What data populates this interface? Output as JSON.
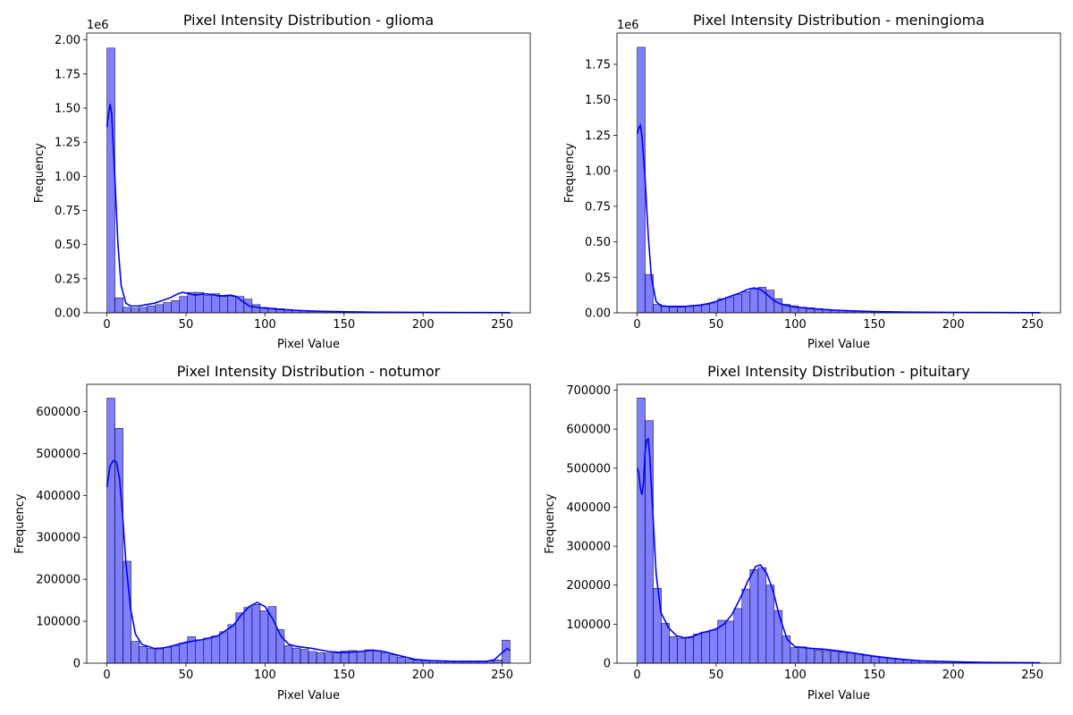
{
  "chart_data": [
    {
      "type": "bar",
      "title": "Pixel Intensity Distribution - glioma",
      "xlabel": "Pixel Value",
      "ylabel": "Frequency",
      "offset_label": "1e6",
      "bin_width": 5.1,
      "xlim": [
        0,
        255
      ],
      "ylim": [
        0,
        2.05
      ],
      "xticks": [
        {
          "value": 0,
          "label": "0"
        },
        {
          "value": 50,
          "label": "50"
        },
        {
          "value": 100,
          "label": "100"
        },
        {
          "value": 150,
          "label": "150"
        },
        {
          "value": 200,
          "label": "200"
        },
        {
          "value": 250,
          "label": "250"
        }
      ],
      "yticks": [
        {
          "value": 0,
          "label": "0.00"
        },
        {
          "value": 0.25,
          "label": "0.25"
        },
        {
          "value": 0.5,
          "label": "0.50"
        },
        {
          "value": 0.75,
          "label": "0.75"
        },
        {
          "value": 1.0,
          "label": "1.00"
        },
        {
          "value": 1.25,
          "label": "1.25"
        },
        {
          "value": 1.5,
          "label": "1.50"
        },
        {
          "value": 1.75,
          "label": "1.75"
        },
        {
          "value": 2.0,
          "label": "2.00"
        }
      ],
      "values": [
        1.94,
        0.11,
        0.04,
        0.035,
        0.04,
        0.05,
        0.06,
        0.075,
        0.09,
        0.12,
        0.15,
        0.15,
        0.13,
        0.14,
        0.12,
        0.12,
        0.12,
        0.1,
        0.06,
        0.04,
        0.035,
        0.03,
        0.025,
        0.02,
        0.017,
        0.015,
        0.013,
        0.011,
        0.01,
        0.009,
        0.008,
        0.007,
        0.006,
        0.005,
        0.005,
        0.004,
        0.004,
        0.003,
        0.003,
        0.003,
        0.002,
        0.002,
        0.002,
        0.002,
        0.002,
        0.002,
        0.001,
        0.001,
        0.001,
        0.001
      ],
      "kde": [
        [
          0,
          1.36
        ],
        [
          1,
          1.45
        ],
        [
          2,
          1.53
        ],
        [
          3,
          1.46
        ],
        [
          5,
          1.0
        ],
        [
          7,
          0.5
        ],
        [
          9,
          0.2
        ],
        [
          12,
          0.07
        ],
        [
          15,
          0.05
        ],
        [
          20,
          0.05
        ],
        [
          25,
          0.06
        ],
        [
          30,
          0.07
        ],
        [
          35,
          0.09
        ],
        [
          40,
          0.11
        ],
        [
          45,
          0.14
        ],
        [
          48,
          0.15
        ],
        [
          52,
          0.14
        ],
        [
          56,
          0.13
        ],
        [
          62,
          0.14
        ],
        [
          66,
          0.135
        ],
        [
          70,
          0.125
        ],
        [
          74,
          0.125
        ],
        [
          78,
          0.13
        ],
        [
          82,
          0.12
        ],
        [
          85,
          0.09
        ],
        [
          90,
          0.05
        ],
        [
          95,
          0.04
        ],
        [
          100,
          0.035
        ],
        [
          110,
          0.025
        ],
        [
          120,
          0.018
        ],
        [
          130,
          0.013
        ],
        [
          140,
          0.01
        ],
        [
          150,
          0.008
        ],
        [
          170,
          0.005
        ],
        [
          200,
          0.003
        ],
        [
          230,
          0.002
        ],
        [
          255,
          0.001
        ]
      ],
      "color": "#0000ff"
    },
    {
      "type": "bar",
      "title": "Pixel Intensity Distribution - meningioma",
      "xlabel": "Pixel Value",
      "ylabel": "Frequency",
      "offset_label": "1e6",
      "bin_width": 5.1,
      "xlim": [
        0,
        255
      ],
      "ylim": [
        0,
        1.97
      ],
      "xticks": [
        {
          "value": 0,
          "label": "0"
        },
        {
          "value": 50,
          "label": "50"
        },
        {
          "value": 100,
          "label": "100"
        },
        {
          "value": 150,
          "label": "150"
        },
        {
          "value": 200,
          "label": "200"
        },
        {
          "value": 250,
          "label": "250"
        }
      ],
      "yticks": [
        {
          "value": 0,
          "label": "0.00"
        },
        {
          "value": 0.25,
          "label": "0.25"
        },
        {
          "value": 0.5,
          "label": "0.50"
        },
        {
          "value": 0.75,
          "label": "0.75"
        },
        {
          "value": 1.0,
          "label": "1.00"
        },
        {
          "value": 1.25,
          "label": "1.25"
        },
        {
          "value": 1.5,
          "label": "1.50"
        },
        {
          "value": 1.75,
          "label": "1.75"
        }
      ],
      "values": [
        1.87,
        0.27,
        0.06,
        0.045,
        0.04,
        0.04,
        0.045,
        0.05,
        0.06,
        0.07,
        0.1,
        0.11,
        0.13,
        0.15,
        0.17,
        0.18,
        0.16,
        0.1,
        0.06,
        0.05,
        0.04,
        0.035,
        0.03,
        0.025,
        0.02,
        0.018,
        0.015,
        0.013,
        0.011,
        0.01,
        0.009,
        0.008,
        0.007,
        0.006,
        0.005,
        0.004,
        0.004,
        0.003,
        0.003,
        0.003,
        0.002,
        0.002,
        0.002,
        0.002,
        0.002,
        0.001,
        0.001,
        0.001,
        0.001,
        0.001
      ],
      "kde": [
        [
          0,
          1.26
        ],
        [
          1,
          1.3
        ],
        [
          2,
          1.32
        ],
        [
          3,
          1.25
        ],
        [
          5,
          0.95
        ],
        [
          7,
          0.55
        ],
        [
          9,
          0.25
        ],
        [
          12,
          0.08
        ],
        [
          15,
          0.05
        ],
        [
          20,
          0.045
        ],
        [
          30,
          0.045
        ],
        [
          40,
          0.055
        ],
        [
          45,
          0.065
        ],
        [
          50,
          0.08
        ],
        [
          55,
          0.1
        ],
        [
          60,
          0.12
        ],
        [
          65,
          0.14
        ],
        [
          70,
          0.165
        ],
        [
          74,
          0.175
        ],
        [
          78,
          0.165
        ],
        [
          82,
          0.13
        ],
        [
          86,
          0.09
        ],
        [
          90,
          0.065
        ],
        [
          95,
          0.05
        ],
        [
          100,
          0.04
        ],
        [
          110,
          0.03
        ],
        [
          120,
          0.022
        ],
        [
          130,
          0.016
        ],
        [
          140,
          0.012
        ],
        [
          150,
          0.009
        ],
        [
          170,
          0.005
        ],
        [
          200,
          0.003
        ],
        [
          230,
          0.002
        ],
        [
          255,
          0.001
        ]
      ],
      "color": "#0000ff"
    },
    {
      "type": "bar",
      "title": "Pixel Intensity Distribution - notumor",
      "xlabel": "Pixel Value",
      "ylabel": "Frequency",
      "offset_label": "",
      "bin_width": 5.1,
      "xlim": [
        0,
        255
      ],
      "ylim": [
        0,
        665000
      ],
      "xticks": [
        {
          "value": 0,
          "label": "0"
        },
        {
          "value": 50,
          "label": "50"
        },
        {
          "value": 100,
          "label": "100"
        },
        {
          "value": 150,
          "label": "150"
        },
        {
          "value": 200,
          "label": "200"
        },
        {
          "value": 250,
          "label": "250"
        }
      ],
      "yticks": [
        {
          "value": 0,
          "label": "0"
        },
        {
          "value": 100000,
          "label": "100000"
        },
        {
          "value": 200000,
          "label": "200000"
        },
        {
          "value": 300000,
          "label": "300000"
        },
        {
          "value": 400000,
          "label": "400000"
        },
        {
          "value": 500000,
          "label": "500000"
        },
        {
          "value": 600000,
          "label": "600000"
        }
      ],
      "values": [
        632000,
        560000,
        243000,
        52000,
        40000,
        35000,
        34000,
        38000,
        42000,
        48000,
        63000,
        56000,
        60000,
        65000,
        75000,
        92000,
        120000,
        133000,
        140000,
        125000,
        135000,
        80000,
        42000,
        36000,
        33000,
        28000,
        25000,
        24000,
        24000,
        29000,
        30000,
        28000,
        32000,
        30000,
        25000,
        20000,
        14000,
        9000,
        7000,
        6000,
        5000,
        5000,
        4000,
        4000,
        4000,
        4000,
        4000,
        5000,
        8000,
        55000
      ],
      "kde": [
        [
          0,
          420000
        ],
        [
          2,
          470000
        ],
        [
          4,
          483000
        ],
        [
          6,
          480000
        ],
        [
          8,
          440000
        ],
        [
          10,
          350000
        ],
        [
          12,
          240000
        ],
        [
          15,
          130000
        ],
        [
          18,
          70000
        ],
        [
          22,
          45000
        ],
        [
          30,
          35000
        ],
        [
          35,
          36000
        ],
        [
          40,
          40000
        ],
        [
          50,
          50000
        ],
        [
          60,
          56000
        ],
        [
          70,
          65000
        ],
        [
          80,
          90000
        ],
        [
          85,
          115000
        ],
        [
          90,
          135000
        ],
        [
          95,
          145000
        ],
        [
          100,
          135000
        ],
        [
          105,
          105000
        ],
        [
          110,
          65000
        ],
        [
          115,
          45000
        ],
        [
          120,
          40000
        ],
        [
          130,
          35000
        ],
        [
          140,
          28000
        ],
        [
          150,
          25000
        ],
        [
          160,
          28000
        ],
        [
          168,
          31000
        ],
        [
          175,
          28000
        ],
        [
          185,
          18000
        ],
        [
          195,
          9000
        ],
        [
          205,
          6000
        ],
        [
          220,
          4500
        ],
        [
          240,
          4500
        ],
        [
          245,
          8000
        ],
        [
          250,
          25000
        ],
        [
          253,
          35000
        ],
        [
          255,
          30000
        ]
      ],
      "color": "#0000ff"
    },
    {
      "type": "bar",
      "title": "Pixel Intensity Distribution - pituitary",
      "xlabel": "Pixel Value",
      "ylabel": "Frequency",
      "offset_label": "",
      "bin_width": 5.1,
      "xlim": [
        0,
        255
      ],
      "ylim": [
        0,
        715000
      ],
      "xticks": [
        {
          "value": 0,
          "label": "0"
        },
        {
          "value": 50,
          "label": "50"
        },
        {
          "value": 100,
          "label": "100"
        },
        {
          "value": 150,
          "label": "150"
        },
        {
          "value": 200,
          "label": "200"
        },
        {
          "value": 250,
          "label": "250"
        }
      ],
      "yticks": [
        {
          "value": 0,
          "label": "0"
        },
        {
          "value": 100000,
          "label": "100000"
        },
        {
          "value": 200000,
          "label": "200000"
        },
        {
          "value": 300000,
          "label": "300000"
        },
        {
          "value": 400000,
          "label": "400000"
        },
        {
          "value": 500000,
          "label": "500000"
        },
        {
          "value": 600000,
          "label": "600000"
        },
        {
          "value": 700000,
          "label": "700000"
        }
      ],
      "values": [
        680000,
        622000,
        192000,
        102000,
        68000,
        64000,
        65000,
        75000,
        80000,
        85000,
        110000,
        108000,
        140000,
        190000,
        240000,
        245000,
        200000,
        135000,
        70000,
        40000,
        42000,
        38000,
        34000,
        32000,
        30000,
        28000,
        26000,
        24000,
        20000,
        17000,
        15000,
        12000,
        10000,
        8000,
        7000,
        6000,
        5000,
        4000,
        3500,
        3000,
        2500,
        2000,
        2000,
        1500,
        1500,
        1000,
        1000,
        1000,
        1000,
        1000
      ],
      "kde": [
        [
          0,
          500000
        ],
        [
          1,
          490000
        ],
        [
          2,
          450000
        ],
        [
          3,
          432000
        ],
        [
          4,
          460000
        ],
        [
          5,
          540000
        ],
        [
          6,
          572000
        ],
        [
          7,
          575000
        ],
        [
          8,
          530000
        ],
        [
          10,
          380000
        ],
        [
          12,
          230000
        ],
        [
          15,
          130000
        ],
        [
          20,
          90000
        ],
        [
          25,
          70000
        ],
        [
          30,
          65000
        ],
        [
          35,
          68000
        ],
        [
          40,
          77000
        ],
        [
          45,
          82000
        ],
        [
          50,
          88000
        ],
        [
          55,
          100000
        ],
        [
          60,
          125000
        ],
        [
          65,
          165000
        ],
        [
          70,
          210000
        ],
        [
          75,
          248000
        ],
        [
          78,
          252000
        ],
        [
          82,
          230000
        ],
        [
          86,
          185000
        ],
        [
          90,
          120000
        ],
        [
          95,
          60000
        ],
        [
          100,
          42000
        ],
        [
          110,
          38000
        ],
        [
          120,
          35000
        ],
        [
          130,
          30000
        ],
        [
          140,
          24000
        ],
        [
          150,
          18000
        ],
        [
          160,
          13000
        ],
        [
          170,
          9000
        ],
        [
          180,
          6000
        ],
        [
          200,
          3500
        ],
        [
          220,
          2000
        ],
        [
          255,
          1000
        ]
      ],
      "color": "#0000ff"
    }
  ]
}
